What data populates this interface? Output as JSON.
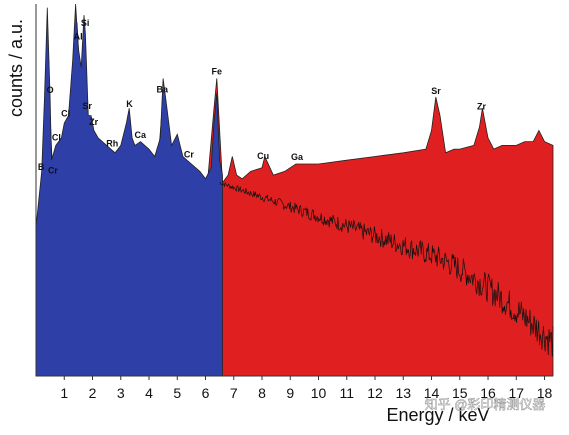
{
  "chart_data": {
    "type": "area",
    "title": "",
    "xlabel": "Energy / keV",
    "ylabel": "counts / a.u.",
    "xlim": [
      0,
      18.3
    ],
    "ylim": [
      0,
      100
    ],
    "x_ticks": [
      1,
      2,
      3,
      4,
      5,
      6,
      7,
      8,
      9,
      10,
      11,
      12,
      13,
      14,
      15,
      16,
      17,
      18
    ],
    "grid": false,
    "legend": "none",
    "colors": {
      "red_series": "#e02020",
      "blue_series": "#2f3fa8",
      "trace": "#111111"
    },
    "series": [
      {
        "color": "#e02020",
        "x": [
          0.0,
          0.2,
          0.3,
          0.45,
          0.5,
          0.6,
          0.8,
          1.0,
          1.2,
          1.35,
          1.45,
          1.5,
          1.55,
          1.65,
          1.75,
          1.85,
          2.0,
          2.2,
          2.5,
          2.8,
          3.0,
          3.3,
          3.5,
          3.7,
          4.0,
          4.3,
          4.5,
          4.6,
          4.8,
          5.0,
          5.2,
          5.5,
          5.8,
          6.0,
          6.3,
          6.4,
          6.6,
          6.8,
          6.95,
          7.1,
          7.3,
          7.6,
          8.0,
          8.1,
          8.4,
          8.8,
          9.2,
          9.6,
          10.0,
          11.0,
          12.0,
          13.0,
          13.8,
          14.0,
          14.15,
          14.3,
          14.5,
          14.8,
          15.0,
          15.5,
          15.7,
          15.8,
          16.0,
          16.2,
          16.5,
          17.0,
          17.3,
          17.6,
          17.8,
          18.0,
          18.3
        ],
        "values": [
          40,
          50,
          60,
          85,
          70,
          52,
          46,
          50,
          60,
          85,
          95,
          88,
          82,
          78,
          68,
          70,
          57,
          52,
          50,
          47,
          40,
          46,
          52,
          48,
          44,
          56,
          75,
          72,
          50,
          58,
          48,
          44,
          44,
          46,
          72,
          80,
          52,
          54,
          59,
          54,
          53,
          55,
          56,
          59,
          54,
          55,
          57,
          57,
          57,
          58,
          59,
          60,
          61,
          66,
          75,
          70,
          60,
          61,
          61,
          62,
          67,
          72,
          64,
          61,
          62,
          62,
          63,
          63,
          66,
          63,
          62
        ]
      },
      {
        "color": "#2f3fa8",
        "x": [
          0.0,
          0.2,
          0.3,
          0.4,
          0.5,
          0.55,
          0.7,
          0.9,
          1.0,
          1.15,
          1.3,
          1.4,
          1.5,
          1.6,
          1.7,
          1.75,
          1.85,
          1.95,
          2.05,
          2.2,
          2.5,
          2.8,
          3.0,
          3.2,
          3.3,
          3.4,
          3.5,
          3.7,
          4.0,
          4.2,
          4.4,
          4.5,
          4.6,
          4.8,
          5.0,
          5.2,
          5.5,
          5.8,
          6.0,
          6.2,
          6.3,
          6.4,
          6.5,
          6.6
        ],
        "values": [
          40,
          55,
          75,
          99,
          75,
          58,
          62,
          64,
          68,
          70,
          85,
          100,
          88,
          83,
          97,
          92,
          70,
          70,
          66,
          64,
          62,
          60,
          62,
          68,
          72,
          64,
          62,
          63,
          61,
          59,
          64,
          80,
          74,
          62,
          65,
          59,
          57,
          55,
          53,
          56,
          68,
          76,
          58,
          54
        ]
      }
    ],
    "peak_labels": [
      {
        "text": "O",
        "x": 0.5
      },
      {
        "text": "Cr",
        "x": 0.6
      },
      {
        "text": "Al",
        "x": 1.49
      },
      {
        "text": "Si",
        "x": 1.74
      },
      {
        "text": "Sr",
        "x": 1.81
      },
      {
        "text": "Zr",
        "x": 2.04
      },
      {
        "text": "Cl",
        "x": 1.05
      },
      {
        "text": "Cl",
        "x": 0.72
      },
      {
        "text": "B",
        "x": 0.18
      },
      {
        "text": "Rh",
        "x": 2.7
      },
      {
        "text": "K",
        "x": 3.31
      },
      {
        "text": "Ca",
        "x": 3.69
      },
      {
        "text": "Ba",
        "x": 4.47
      },
      {
        "text": "Cr",
        "x": 5.41
      },
      {
        "text": "Fe",
        "x": 6.4
      },
      {
        "text": "Cu",
        "x": 8.04
      },
      {
        "text": "Ga",
        "x": 9.24
      },
      {
        "text": "Sr",
        "x": 14.16
      },
      {
        "text": "Zr",
        "x": 15.77
      }
    ]
  },
  "watermark": "知乎 @彩印精测仪器"
}
